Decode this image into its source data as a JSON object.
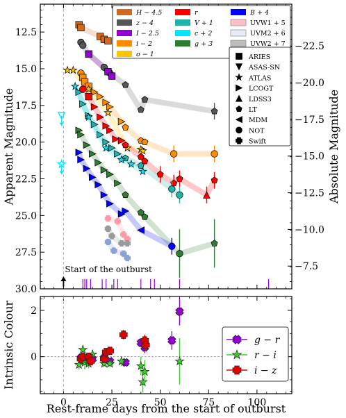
{
  "chart_data": [
    {
      "type": "scatter",
      "xlabel": "",
      "ylabel": "Apparent Magnitude",
      "ylabel_right": "Absolute Magnitude",
      "xlim": [
        -12,
        118
      ],
      "ylim": [
        30.0,
        10.6
      ],
      "ylim_right": [
        -5.95,
        -25.35
      ],
      "y_ticks": [
        "12.5",
        "15.0",
        "17.5",
        "20.0",
        "22.5",
        "25.0",
        "27.5",
        "30.0"
      ],
      "y_right_ticks": [
        "-22.5",
        "-20.0",
        "-17.5",
        "-15.0",
        "-12.5",
        "-10.0",
        "-7.5"
      ],
      "annotation": "Start of the outburst",
      "outburst_start_day": 0,
      "colors": {
        "H": "#d2691e",
        "z": "#555555",
        "I": "#9400d3",
        "i": "#ff8c00",
        "o": "#ffc400",
        "r": "#ff0000",
        "V": "#20b2aa",
        "c": "#00e5ff",
        "g": "#2e7d32",
        "B": "#0000ff",
        "UVW1": "#ff9aa8",
        "UVM2": "#8aa0d8",
        "UVW2": "#9a9a9a"
      },
      "legend_filters": [
        {
          "key": "H",
          "label": "H − 4.5"
        },
        {
          "key": "r",
          "label": "r"
        },
        {
          "key": "B",
          "label": "B + 4"
        },
        {
          "key": "z",
          "label": "z − 4"
        },
        {
          "key": "V",
          "label": "V + 1"
        },
        {
          "key": "UVW1",
          "label": "UVW1 + 5"
        },
        {
          "key": "I",
          "label": "I − 2.5"
        },
        {
          "key": "c",
          "label": "c + 2"
        },
        {
          "key": "UVM2",
          "label": "UVM2 + 6"
        },
        {
          "key": "i",
          "label": "i − 2"
        },
        {
          "key": "g",
          "label": "g + 3"
        },
        {
          "key": "UVW2",
          "label": "UVW2 + 7"
        },
        {
          "key": "o",
          "label": "o − 1"
        }
      ],
      "legend_telescopes": [
        {
          "marker": "square",
          "label": "ARIES"
        },
        {
          "marker": "triangle-down",
          "label": "ASAS-SN"
        },
        {
          "marker": "star",
          "label": "ATLAS"
        },
        {
          "marker": "triangle-right",
          "label": "LCOGT"
        },
        {
          "marker": "triangle-up",
          "label": "LDSS3"
        },
        {
          "marker": "pentagon",
          "label": "LT"
        },
        {
          "marker": "triangle-left",
          "label": "MDM"
        },
        {
          "marker": "circle",
          "label": "NOT"
        },
        {
          "marker": "plus",
          "label": "Swift"
        }
      ],
      "series": [
        {
          "key": "H",
          "points": [
            [
              8,
              12.0,
              "square"
            ],
            [
              9,
              12.2,
              "square"
            ],
            [
              19,
              12.8,
              "square"
            ],
            [
              21,
              13.0,
              "square"
            ],
            [
              23,
              13.1,
              "square"
            ]
          ]
        },
        {
          "key": "z",
          "points": [
            [
              9,
              13.2,
              "circle"
            ],
            [
              10,
              13.4,
              "circle"
            ],
            [
              13,
              14.0,
              "square"
            ],
            [
              21,
              14.9,
              "circle"
            ],
            [
              24,
              15.3,
              "circle"
            ],
            [
              32,
              16.1,
              "pentagon"
            ],
            [
              40,
              17.8,
              "pentagon"
            ],
            [
              42,
              17.1,
              "pentagon"
            ],
            [
              78,
              17.9,
              "pentagon"
            ]
          ]
        },
        {
          "key": "I",
          "points": [
            [
              13,
              14.0,
              "square"
            ],
            [
              23,
              15.2,
              "square"
            ],
            [
              25,
              15.5,
              "square"
            ]
          ]
        },
        {
          "key": "i",
          "points": [
            [
              9,
              15.3,
              "circle"
            ],
            [
              10,
              15.6,
              "square"
            ],
            [
              11,
              15.9,
              "square"
            ],
            [
              13,
              16.2,
              "square"
            ],
            [
              16,
              16.6,
              "triangle-right"
            ],
            [
              19,
              16.9,
              "triangle-right"
            ],
            [
              22,
              17.3,
              "triangle-right"
            ],
            [
              24,
              17.6,
              "triangle-right"
            ],
            [
              30,
              18.6,
              "triangle-right"
            ],
            [
              32,
              19.0,
              "pentagon"
            ],
            [
              40,
              19.9,
              "pentagon"
            ],
            [
              42,
              20.0,
              "pentagon"
            ],
            [
              57,
              20.8,
              "circle"
            ],
            [
              78,
              20.8,
              "circle"
            ]
          ]
        },
        {
          "key": "o",
          "points": [
            [
              2,
              15.1,
              "star"
            ],
            [
              5,
              15.1,
              "star"
            ],
            [
              13,
              16.4,
              "star"
            ],
            [
              23,
              18.0,
              "star"
            ],
            [
              33,
              20.4,
              "star"
            ],
            [
              40,
              20.5,
              "star"
            ],
            [
              41,
              20.6,
              "star"
            ]
          ]
        },
        {
          "key": "r",
          "points": [
            [
              10,
              16.4,
              "circle"
            ],
            [
              13,
              16.9,
              "square"
            ],
            [
              16,
              17.6,
              "triangle-right"
            ],
            [
              19,
              18.3,
              "triangle-right"
            ],
            [
              22,
              18.9,
              "triangle-right"
            ],
            [
              24,
              19.2,
              "triangle-right"
            ],
            [
              27,
              19.8,
              "triangle-right"
            ],
            [
              30,
              19.9,
              "triangle-right"
            ],
            [
              32,
              20.2,
              "pentagon"
            ],
            [
              40,
              21.0,
              "pentagon"
            ],
            [
              42,
              21.3,
              "pentagon"
            ],
            [
              50,
              22.2,
              "pentagon"
            ],
            [
              57,
              22.8,
              "pentagon"
            ],
            [
              60,
              22.5,
              "pentagon"
            ],
            [
              74,
              23.6,
              "triangle-up"
            ],
            [
              78,
              22.6,
              "pentagon"
            ]
          ]
        },
        {
          "key": "V",
          "points": [
            [
              8,
              16.6,
              "triangle-right"
            ],
            [
              10,
              17.4,
              "triangle-right"
            ],
            [
              13,
              18.2,
              "triangle-right"
            ],
            [
              16,
              18.8,
              "triangle-right"
            ],
            [
              19,
              19.5,
              "triangle-right"
            ],
            [
              22,
              20.0,
              "triangle-right"
            ],
            [
              25,
              20.4,
              "triangle-right"
            ],
            [
              28,
              20.8,
              "triangle-right"
            ],
            [
              32,
              21.1,
              "pentagon"
            ],
            [
              40,
              21.6,
              "pentagon"
            ],
            [
              56,
              23.2,
              "circle"
            ],
            [
              60,
              23.6,
              "circle"
            ]
          ]
        },
        {
          "key": "c",
          "points": [
            [
              -1,
              21.5,
              "star"
            ],
            [
              6,
              16.2,
              "star"
            ],
            [
              13,
              18.3,
              "star"
            ],
            [
              22,
              20.4,
              "star"
            ],
            [
              30,
              21.2,
              "star"
            ],
            [
              35,
              21.5,
              "star"
            ],
            [
              41,
              22.0,
              "star"
            ]
          ]
        },
        {
          "key": "g",
          "points": [
            [
              8,
              19.2,
              "triangle-right"
            ],
            [
              9,
              19.5,
              "triangle-right"
            ],
            [
              12,
              20.2,
              "triangle-right"
            ],
            [
              15,
              20.8,
              "triangle-right"
            ],
            [
              18,
              21.4,
              "triangle-right"
            ],
            [
              21,
              21.9,
              "triangle-right"
            ],
            [
              24,
              22.2,
              "triangle-right"
            ],
            [
              28,
              22.8,
              "triangle-right"
            ],
            [
              32,
              23.6,
              "pentagon"
            ],
            [
              40,
              24.8,
              "pentagon"
            ],
            [
              42,
              25.1,
              "pentagon"
            ],
            [
              60,
              27.6,
              "circle"
            ],
            [
              78,
              26.9,
              "pentagon"
            ]
          ]
        },
        {
          "key": "B",
          "points": [
            [
              8,
              20.7,
              "triangle-right"
            ],
            [
              9,
              21.2,
              "triangle-right"
            ],
            [
              12,
              21.8,
              "triangle-right"
            ],
            [
              15,
              22.4,
              "triangle-right"
            ],
            [
              18,
              22.9,
              "triangle-right"
            ],
            [
              21,
              23.6,
              "triangle-right"
            ],
            [
              24,
              24.2,
              "triangle-right"
            ],
            [
              30,
              24.9,
              "triangle-right"
            ],
            [
              32,
              24.7,
              "triangle-right"
            ],
            [
              40,
              26.0,
              "triangle-left"
            ],
            [
              56,
              27.1,
              "circle"
            ]
          ]
        },
        {
          "key": "UVW1",
          "points": [
            [
              23,
              25.2,
              "plus"
            ],
            [
              28,
              25.4,
              "plus"
            ],
            [
              31,
              26.3,
              "plus"
            ],
            [
              33,
              26.6,
              "plus"
            ]
          ]
        },
        {
          "key": "UVW2",
          "points": [
            [
              23,
              25.9,
              "plus"
            ],
            [
              25,
              26.4,
              "plus"
            ],
            [
              30,
              26.9,
              "plus"
            ],
            [
              33,
              26.9,
              "plus"
            ]
          ]
        },
        {
          "key": "UVM2",
          "points": [
            [
              23,
              26.8,
              "plus"
            ],
            [
              26,
              27.4,
              "plus"
            ],
            [
              31,
              27.6,
              "plus"
            ],
            [
              33,
              27.9,
              "plus"
            ]
          ]
        },
        {
          "key": "c_asassn",
          "points": [
            [
              -1,
              18.2,
              "triangle-down"
            ]
          ]
        }
      ],
      "observation_epochs": [
        10,
        11,
        12,
        14,
        20,
        22,
        26,
        28,
        40,
        45,
        47,
        60,
        106
      ]
    },
    {
      "type": "scatter",
      "xlabel": "Rest-frame days from the start of outburst",
      "ylabel": "Intrinsic Colour",
      "xlim": [
        -12,
        118
      ],
      "ylim": [
        -1.6,
        2.6
      ],
      "x_ticks": [
        "0",
        "25",
        "50",
        "75",
        "100"
      ],
      "y_ticks": [
        "2",
        "0"
      ],
      "legend": [
        {
          "key": "gr",
          "label": "g − r"
        },
        {
          "key": "ri",
          "label": "r − i"
        },
        {
          "key": "iz",
          "label": "i − z"
        }
      ],
      "colors": {
        "gr": "#9400d3",
        "ri": "#3cd12a",
        "iz": "#e00000"
      },
      "series": [
        {
          "key": "gr",
          "points": [
            [
              9,
              -0.05,
              0.1
            ],
            [
              12,
              -0.15,
              0.1
            ],
            [
              15,
              -0.1,
              0.1
            ],
            [
              21,
              -0.05,
              0.1
            ],
            [
              24,
              -0.2,
              0.1
            ],
            [
              32,
              -0.25,
              0.15
            ],
            [
              40,
              0.6,
              0.2
            ],
            [
              42,
              0.4,
              0.25
            ],
            [
              56,
              0.7,
              0.4
            ],
            [
              60,
              1.95,
              0.6
            ]
          ]
        },
        {
          "key": "ri",
          "points": [
            [
              8,
              -0.35,
              0.2
            ],
            [
              10,
              0.3,
              0.2
            ],
            [
              11,
              -0.25,
              0.3
            ],
            [
              13,
              -0.3,
              0.2
            ],
            [
              15,
              0.1,
              0.2
            ],
            [
              21,
              -0.3,
              0.15
            ],
            [
              24,
              -0.3,
              0.15
            ],
            [
              30,
              -0.2,
              0.2
            ],
            [
              40,
              -0.4,
              0.4
            ],
            [
              41,
              -1.1,
              0.45
            ],
            [
              42,
              -0.65,
              0.5
            ],
            [
              60,
              -0.2,
              1.0
            ]
          ]
        },
        {
          "key": "iz",
          "points": [
            [
              9,
              -0.1,
              0.1
            ],
            [
              10,
              0.0,
              0.1
            ],
            [
              13,
              0.0,
              0.1
            ],
            [
              14,
              -0.2,
              0.1
            ],
            [
              21,
              -0.1,
              0.1
            ],
            [
              22,
              0.2,
              0.1
            ],
            [
              24,
              0.25,
              0.1
            ],
            [
              31,
              0.95,
              0.2
            ],
            [
              42,
              0.7,
              0.25
            ],
            [
              42.5,
              0.5,
              0.25
            ]
          ]
        }
      ]
    }
  ]
}
